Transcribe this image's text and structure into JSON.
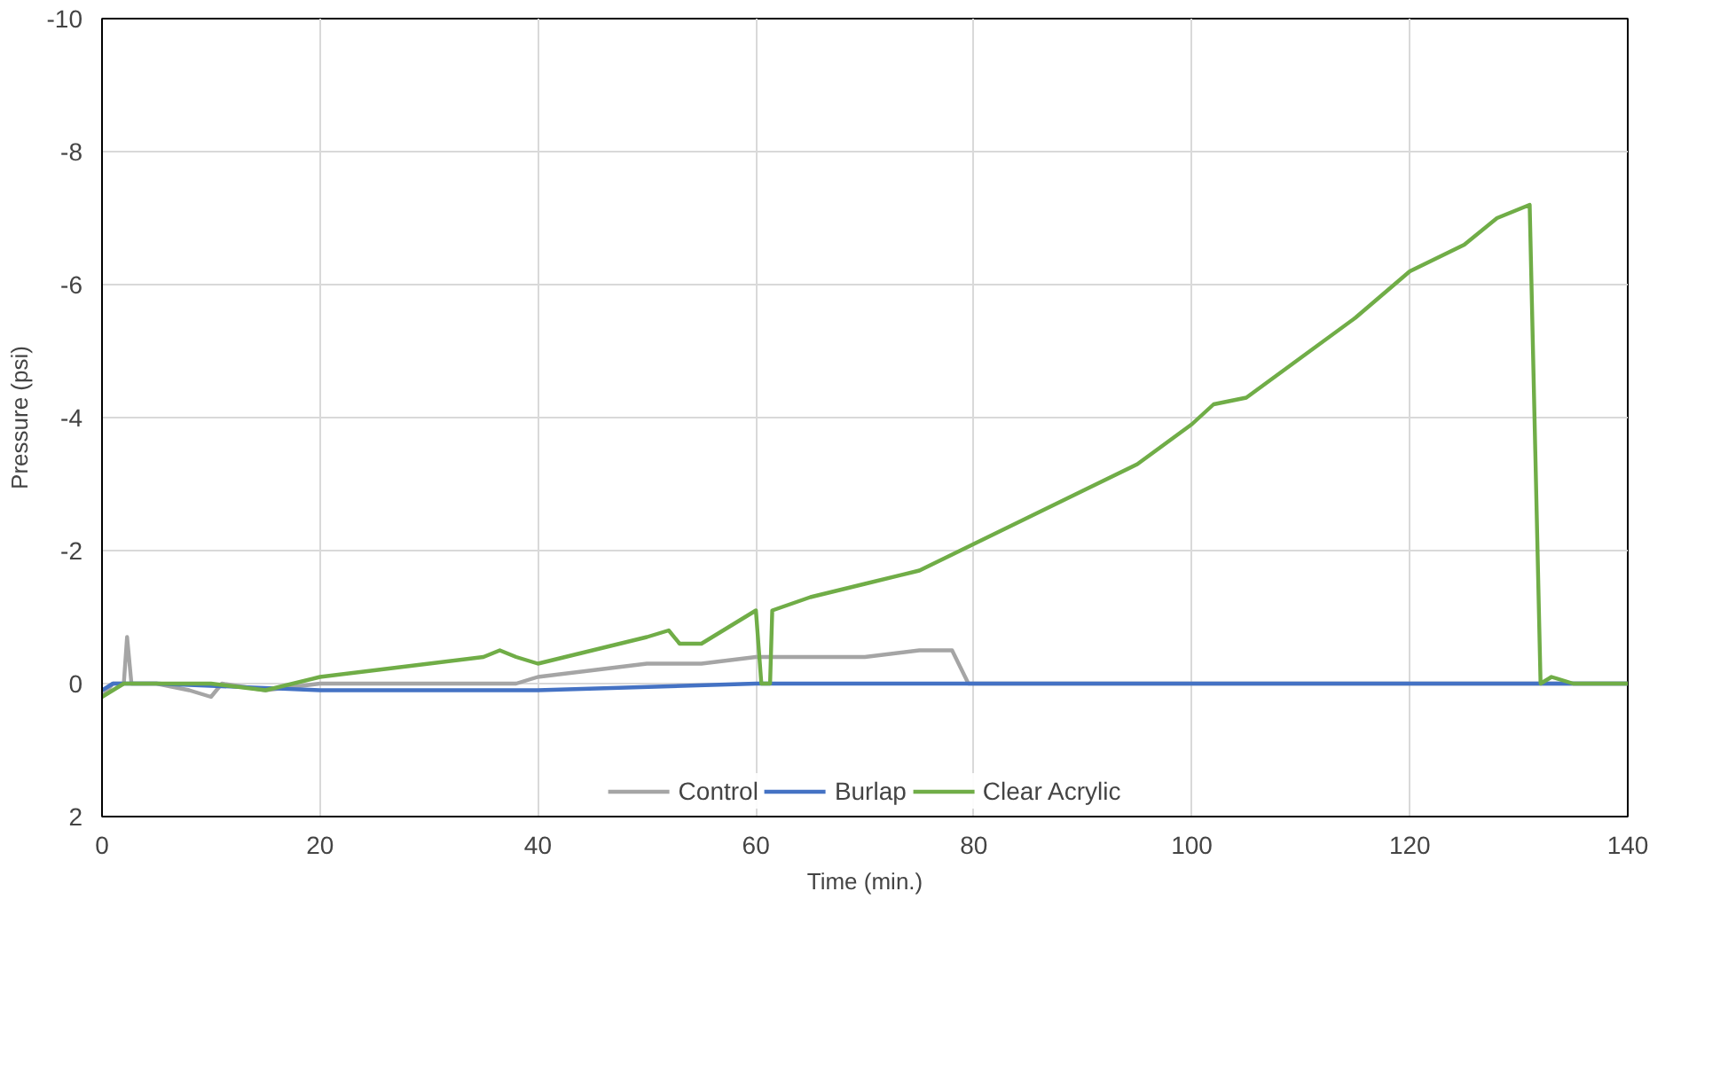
{
  "chart_data": {
    "type": "line",
    "xlabel": "Time (min.)",
    "ylabel": "Pressure (psi)",
    "xlim": [
      0,
      140
    ],
    "ylim": [
      2,
      -10
    ],
    "xticks": [
      0,
      20,
      40,
      60,
      80,
      100,
      120,
      140
    ],
    "yticks": [
      -10,
      -8,
      -6,
      -4,
      -2,
      0,
      2
    ],
    "grid": true,
    "legend": "bottom",
    "line_style": "solid",
    "series": [
      {
        "name": "Control",
        "color": "#a5a5a5",
        "x": [
          0,
          1,
          2,
          2.3,
          2.7,
          5,
          8,
          10,
          11,
          15,
          20,
          30,
          38,
          40,
          45,
          50,
          55,
          60,
          65,
          70,
          75,
          78,
          79.5,
          90,
          110,
          140
        ],
        "values": [
          0.2,
          0,
          0,
          -0.7,
          0,
          0,
          0.1,
          0.2,
          0,
          0.1,
          0,
          0,
          0,
          -0.1,
          -0.2,
          -0.3,
          -0.3,
          -0.4,
          -0.4,
          -0.4,
          -0.5,
          -0.5,
          0,
          0,
          0,
          0
        ]
      },
      {
        "name": "Burlap",
        "color": "#4472c4",
        "x": [
          0,
          1,
          5,
          20,
          40,
          60,
          80,
          100,
          120,
          140
        ],
        "values": [
          0.1,
          0,
          0,
          0.1,
          0.1,
          0,
          0,
          0,
          0,
          0
        ]
      },
      {
        "name": "Clear Acrylic",
        "color": "#70ad47",
        "x": [
          0,
          1,
          2,
          5,
          10,
          15,
          20,
          25,
          30,
          35,
          36.5,
          38,
          40,
          45,
          50,
          52,
          53,
          55,
          60,
          60.5,
          61.3,
          61.5,
          65,
          70,
          75,
          80,
          85,
          90,
          95,
          100,
          102,
          105,
          110,
          115,
          120,
          125,
          128,
          131,
          132,
          133,
          135,
          140
        ],
        "values": [
          0.2,
          0.1,
          0,
          0,
          0,
          0.1,
          -0.1,
          -0.2,
          -0.3,
          -0.4,
          -0.5,
          -0.4,
          -0.3,
          -0.5,
          -0.7,
          -0.8,
          -0.6,
          -0.6,
          -1.1,
          0,
          0,
          -1.1,
          -1.3,
          -1.5,
          -1.7,
          -2.1,
          -2.5,
          -2.9,
          -3.3,
          -3.9,
          -4.2,
          -4.3,
          -4.9,
          -5.5,
          -6.2,
          -6.6,
          -7.0,
          -7.2,
          0,
          -0.1,
          0,
          0
        ]
      }
    ]
  }
}
